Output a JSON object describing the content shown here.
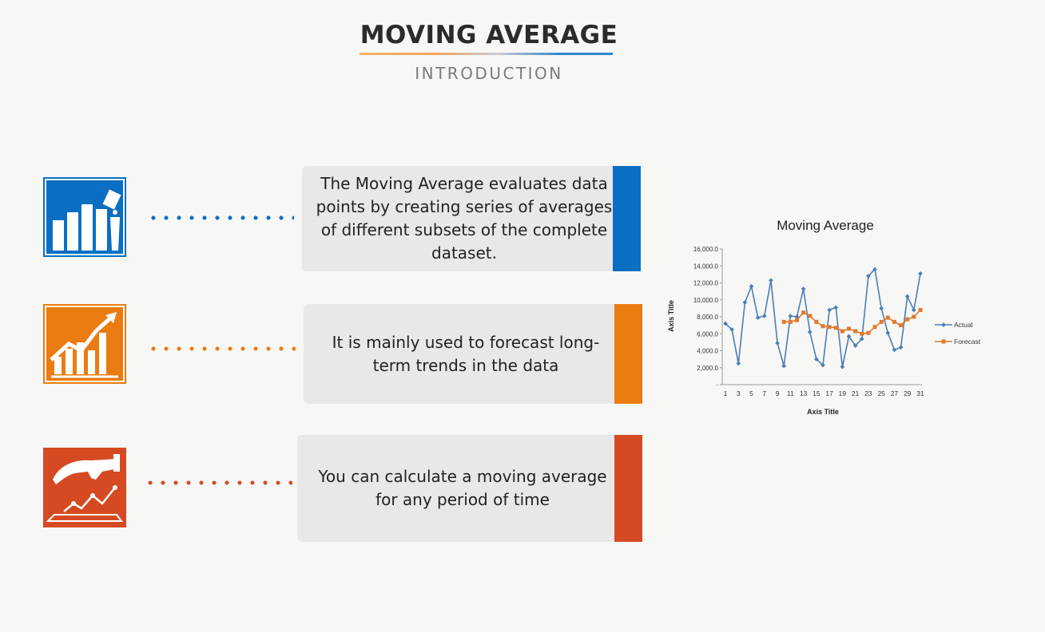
{
  "header": {
    "title": "MOVING AVERAGE",
    "subtitle": "INTRODUCTION"
  },
  "colors": {
    "blue": "#0a6fc2",
    "orange": "#ea7c12",
    "red": "#d54a22",
    "card_bg": "#e8e8e8"
  },
  "cards": [
    {
      "text": "The Moving Average evaluates data points by creating series of averages of different subsets of the complete dataset.",
      "icon": "bar-chart-podium-icon",
      "color": "#0a6fc2"
    },
    {
      "text": "It is mainly used to forecast long-term trends in the data",
      "icon": "rising-bar-chart-arrow-icon",
      "color": "#ea7c12"
    },
    {
      "text": "You can calculate a moving average for any period of time",
      "icon": "hand-line-graph-icon",
      "color": "#d54a22"
    }
  ],
  "chart_data": {
    "type": "line",
    "title": "Moving Average",
    "xlabel": "Axis Title",
    "ylabel": "Axis Title",
    "ylim": [
      0,
      16000
    ],
    "yticks": [
      "-",
      "2,000.0",
      "4,000.0",
      "6,000.0",
      "8,000.0",
      "10,000.0",
      "12,000.0",
      "14,000.0",
      "16,000.0"
    ],
    "x": [
      1,
      2,
      3,
      4,
      5,
      6,
      7,
      8,
      9,
      10,
      11,
      12,
      13,
      14,
      15,
      16,
      17,
      18,
      19,
      20,
      21,
      22,
      23,
      24,
      25,
      26,
      27,
      28,
      29,
      30,
      31
    ],
    "xticks": [
      "1",
      "3",
      "5",
      "7",
      "9",
      "11",
      "13",
      "15",
      "17",
      "19",
      "21",
      "23",
      "25",
      "27",
      "29",
      "31"
    ],
    "legend_position": "right",
    "series": [
      {
        "name": "Actual",
        "color": "#4a7fb5",
        "marker": "diamond",
        "values": [
          7200,
          6500,
          2500,
          9700,
          11600,
          7900,
          8100,
          12300,
          4900,
          2200,
          8100,
          8000,
          11300,
          6200,
          3000,
          2300,
          8800,
          9100,
          2100,
          5700,
          4600,
          5400,
          12800,
          13600,
          9000,
          6100,
          4100,
          4400,
          10400,
          8800,
          13100
        ]
      },
      {
        "name": "Forecast",
        "color": "#e07a2e",
        "marker": "square",
        "values": [
          null,
          null,
          null,
          null,
          null,
          null,
          null,
          null,
          null,
          7400,
          7400,
          7600,
          8500,
          8100,
          7400,
          6900,
          6800,
          6700,
          6300,
          6600,
          6300,
          6000,
          6100,
          6800,
          7400,
          7900,
          7400,
          7000,
          7700,
          8000,
          8800
        ]
      }
    ]
  }
}
